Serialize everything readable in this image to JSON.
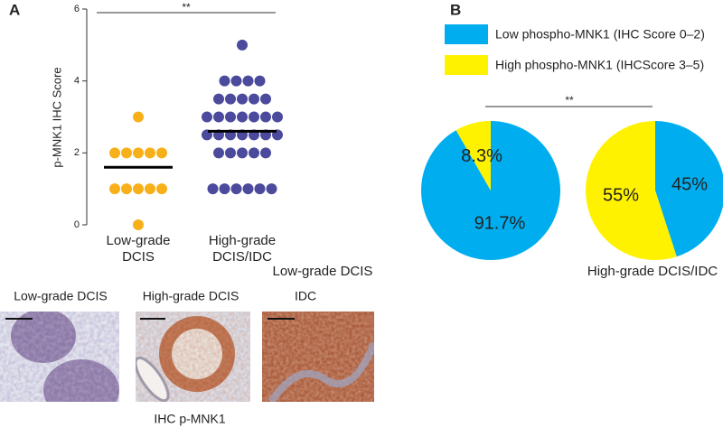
{
  "panels": [
    "A",
    "B"
  ],
  "chart_data": [
    {
      "type": "strip",
      "ylabel": "p-MNK1 IHC Score",
      "ylim": [
        0,
        6
      ],
      "yticks": [
        0,
        2,
        4,
        6
      ],
      "categories": [
        "Low-grade DCIS",
        "High-grade DCIS/IDC"
      ],
      "groups": [
        {
          "color": "#f7b01a",
          "values": [
            3,
            2,
            2,
            2,
            2,
            2,
            1,
            1,
            1,
            1,
            1,
            0
          ]
        },
        {
          "color": "#4b4a9c",
          "values": [
            5,
            4,
            4,
            4,
            4,
            3.5,
            3.5,
            3.5,
            3.5,
            3.5,
            3,
            3,
            3,
            3,
            3,
            3,
            3,
            2.5,
            2.5,
            2.5,
            2.5,
            2.5,
            2.5,
            2.5,
            2,
            2,
            2,
            2,
            2,
            1,
            1,
            1,
            1,
            1,
            1
          ]
        }
      ],
      "means": [
        1.6,
        2.6
      ],
      "annotation": "**"
    },
    {
      "type": "pie",
      "series": [
        {
          "name": "Low phospho-MNK1 (IHC Score 0–2)",
          "color": "#00aeef"
        },
        {
          "name": "High phospho-MNK1 (IHCScore 3–5)",
          "color": "#fff200"
        }
      ],
      "categories": [
        "Low-grade DCIS",
        "High-grade DCIS/IDC"
      ],
      "values": [
        [
          91.7,
          8.3
        ],
        [
          45,
          55
        ]
      ],
      "value_labels": [
        [
          "91.7%",
          "8.3%"
        ],
        [
          "45%",
          "55%"
        ]
      ],
      "annotation": "**"
    }
  ],
  "images": {
    "labels": [
      "Low-grade DCIS",
      "High-grade DCIS",
      "IDC"
    ],
    "caption": "IHC p-MNK1"
  }
}
